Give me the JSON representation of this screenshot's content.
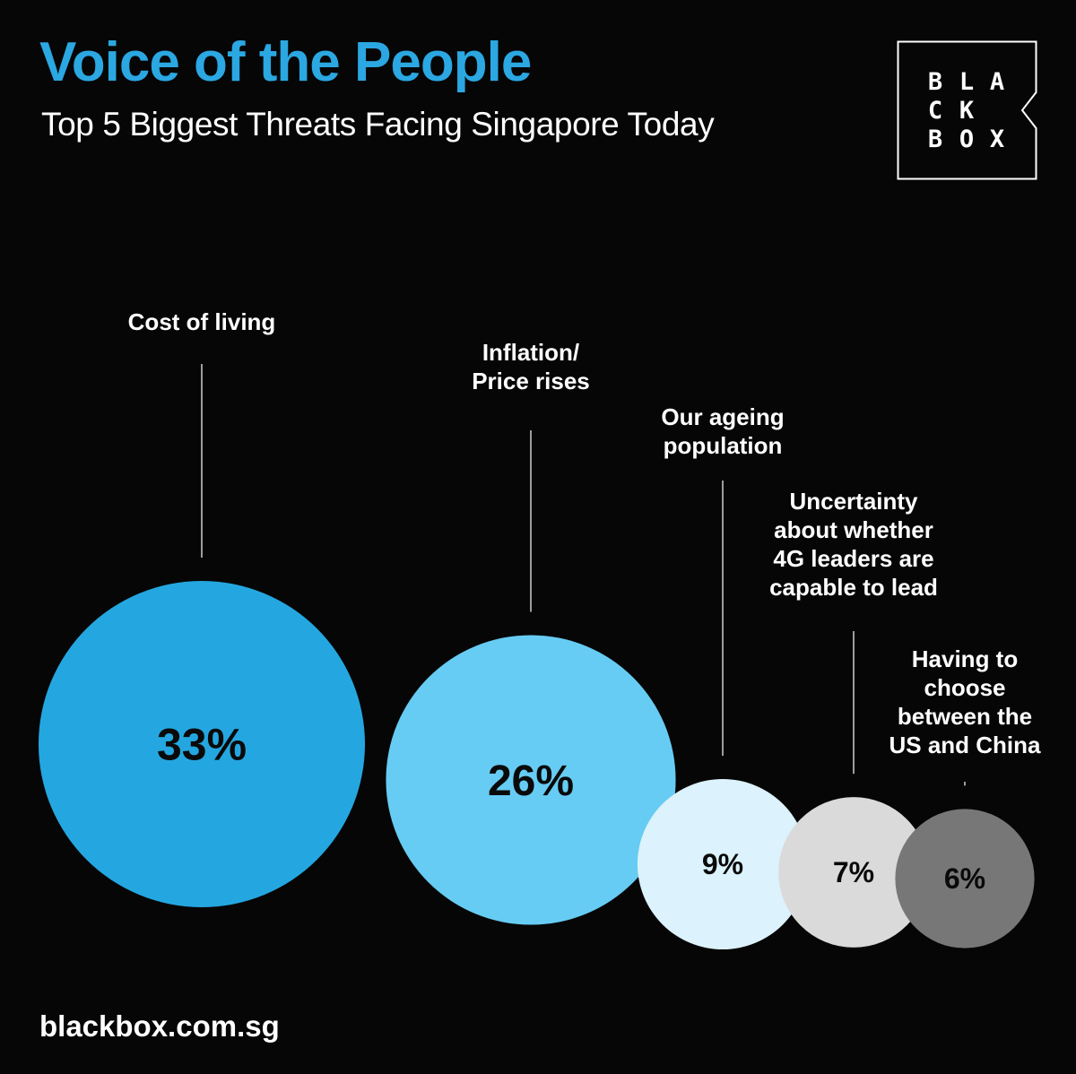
{
  "header": {
    "title": "Voice of the People",
    "subtitle": "Top 5 Biggest Threats Facing Singapore Today"
  },
  "logo": {
    "letters": [
      "B",
      "L",
      "A",
      "C",
      "K",
      "B",
      "O",
      "X"
    ],
    "border_color": "#ffffff"
  },
  "footer": {
    "website": "blackbox.com.sg"
  },
  "colors": {
    "background": "#060606",
    "title": "#2ba7e2",
    "text": "#ffffff",
    "leader_line": "#cfcfcf"
  },
  "chart_data": {
    "type": "bubble",
    "unit": "%",
    "categories": [
      "Cost of living",
      "Inflation/ Price rises",
      "Our ageing population",
      "Uncertainty about whether 4G leaders are capable to lead",
      "Having to choose between the US and China"
    ],
    "label_lines": [
      [
        "Cost of living"
      ],
      [
        "Inflation/",
        "Price rises"
      ],
      [
        "Our ageing",
        "population"
      ],
      [
        "Uncertainty",
        "about whether",
        "4G leaders are",
        "capable to lead"
      ],
      [
        "Having to",
        "choose",
        "between the",
        "US and China"
      ]
    ],
    "values": [
      33,
      26,
      9,
      7,
      6
    ],
    "value_labels": [
      "33%",
      "26%",
      "9%",
      "7%",
      "6%"
    ],
    "colors": [
      "#24a7e0",
      "#66ccf3",
      "#dcf2fc",
      "#dadada",
      "#777777"
    ]
  }
}
